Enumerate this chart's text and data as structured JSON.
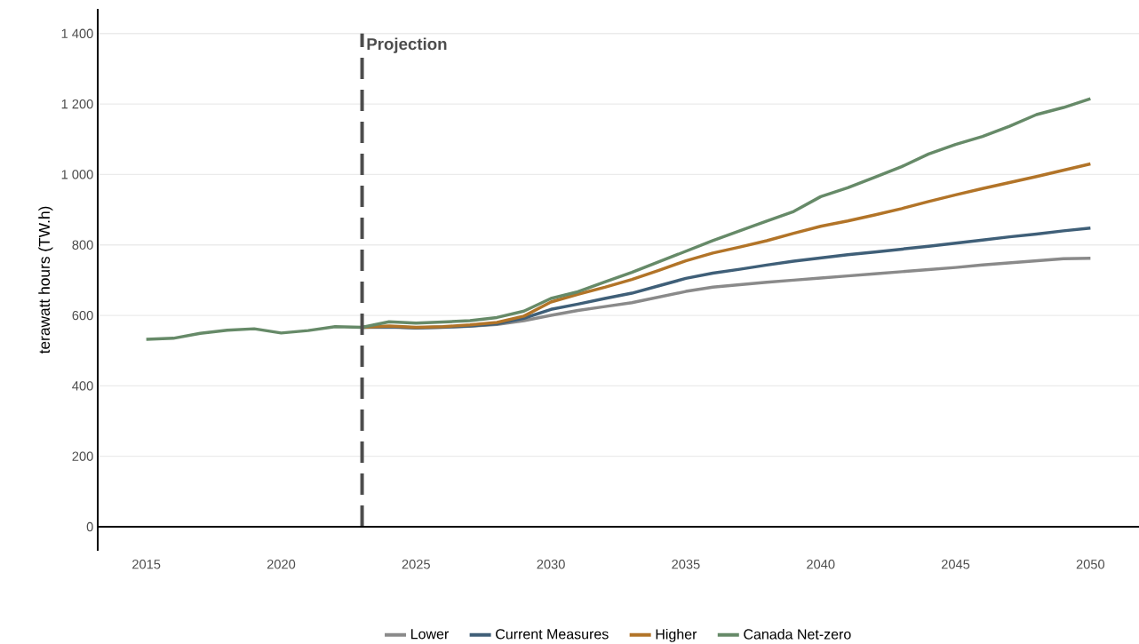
{
  "chart_data": {
    "type": "line",
    "ylabel": "terawatt hours (TW.h)",
    "x": [
      2015,
      2016,
      2017,
      2018,
      2019,
      2020,
      2021,
      2022,
      2023,
      2024,
      2025,
      2026,
      2027,
      2028,
      2029,
      2030,
      2031,
      2032,
      2033,
      2034,
      2035,
      2036,
      2037,
      2038,
      2039,
      2040,
      2041,
      2042,
      2043,
      2044,
      2045,
      2046,
      2047,
      2048,
      2049,
      2050
    ],
    "series": [
      {
        "name": "Lower",
        "color": "#8a8a8a",
        "values": [
          null,
          null,
          null,
          null,
          null,
          null,
          null,
          null,
          566,
          567,
          564,
          566,
          569,
          574,
          585,
          600,
          614,
          625,
          636,
          652,
          668,
          680,
          687,
          694,
          700,
          706,
          712,
          718,
          724,
          730,
          736,
          743,
          749,
          755,
          761,
          762
        ]
      },
      {
        "name": "Current Measures",
        "color": "#3f5f78",
        "values": [
          null,
          null,
          null,
          null,
          null,
          null,
          null,
          null,
          566,
          568,
          565,
          567,
          570,
          576,
          592,
          617,
          632,
          648,
          663,
          684,
          705,
          720,
          731,
          743,
          754,
          763,
          772,
          780,
          788,
          796,
          805,
          814,
          823,
          831,
          840,
          848
        ]
      },
      {
        "name": "Higher",
        "color": "#b27428",
        "values": [
          null,
          null,
          null,
          null,
          null,
          null,
          null,
          null,
          566,
          570,
          566,
          568,
          573,
          580,
          598,
          638,
          660,
          680,
          702,
          728,
          755,
          777,
          794,
          812,
          833,
          853,
          868,
          885,
          903,
          923,
          942,
          960,
          977,
          994,
          1012,
          1030
        ]
      },
      {
        "name": "Canada Net-zero",
        "color": "#668a68",
        "values": [
          532,
          535,
          549,
          558,
          562,
          550,
          557,
          568,
          566,
          582,
          578,
          581,
          585,
          594,
          612,
          648,
          667,
          695,
          722,
          752,
          782,
          812,
          840,
          868,
          895,
          937,
          962,
          992,
          1022,
          1058,
          1085,
          1108,
          1137,
          1170,
          1190,
          1215
        ]
      }
    ],
    "xlim": [
      2013.2,
      2051.8
    ],
    "ylim": [
      -68,
      1470
    ],
    "xticks": [
      {
        "value": 2015,
        "label": "2015"
      },
      {
        "value": 2020,
        "label": "2020"
      },
      {
        "value": 2025,
        "label": "2025"
      },
      {
        "value": 2030,
        "label": "2030"
      },
      {
        "value": 2035,
        "label": "2035"
      },
      {
        "value": 2040,
        "label": "2040"
      },
      {
        "value": 2045,
        "label": "2045"
      },
      {
        "value": 2050,
        "label": "2050"
      }
    ],
    "yticks": [
      {
        "value": 0,
        "label": "0"
      },
      {
        "value": 200,
        "label": "200"
      },
      {
        "value": 400,
        "label": "400"
      },
      {
        "value": 600,
        "label": "600"
      },
      {
        "value": 800,
        "label": "800"
      },
      {
        "value": 1000,
        "label": "1 000"
      },
      {
        "value": 1200,
        "label": "1 200"
      },
      {
        "value": 1400,
        "label": "1 400"
      }
    ],
    "grid": "y",
    "legend": "bottom",
    "marker": "none",
    "line_style": "solid",
    "ref_lines": [
      {
        "axis": "x",
        "value": 2023,
        "label": "Projection",
        "color": "#4d4d4d",
        "line_style": "dashed"
      }
    ]
  }
}
